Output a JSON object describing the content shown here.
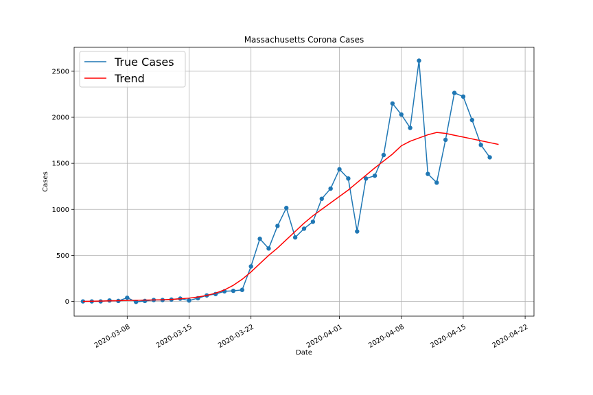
{
  "chart_data": {
    "type": "line",
    "title": "Massachusetts Corona Cases",
    "xlabel": "Date",
    "ylabel": "Cases",
    "x_axis": "date",
    "xlim": [
      "2020-03-02",
      "2020-04-23"
    ],
    "ylim": [
      -160,
      2760
    ],
    "xticks": [
      "2020-03-08",
      "2020-03-15",
      "2020-03-22",
      "2020-04-01",
      "2020-04-08",
      "2020-04-15",
      "2020-04-22"
    ],
    "yticks": [
      0,
      500,
      1000,
      1500,
      2000,
      2500
    ],
    "grid": true,
    "legend": "top-left",
    "x": [
      "2020-03-03",
      "2020-03-04",
      "2020-03-05",
      "2020-03-06",
      "2020-03-07",
      "2020-03-08",
      "2020-03-09",
      "2020-03-10",
      "2020-03-11",
      "2020-03-12",
      "2020-03-13",
      "2020-03-14",
      "2020-03-15",
      "2020-03-16",
      "2020-03-17",
      "2020-03-18",
      "2020-03-19",
      "2020-03-20",
      "2020-03-21",
      "2020-03-22",
      "2020-03-23",
      "2020-03-24",
      "2020-03-25",
      "2020-03-26",
      "2020-03-27",
      "2020-03-28",
      "2020-03-29",
      "2020-03-30",
      "2020-03-31",
      "2020-04-01",
      "2020-04-02",
      "2020-04-03",
      "2020-04-04",
      "2020-04-05",
      "2020-04-06",
      "2020-04-07",
      "2020-04-08",
      "2020-04-09",
      "2020-04-10",
      "2020-04-11",
      "2020-04-12",
      "2020-04-13",
      "2020-04-14",
      "2020-04-15",
      "2020-04-16",
      "2020-04-17",
      "2020-04-18",
      "2020-04-19",
      "2020-04-20"
    ],
    "series": [
      {
        "name": "True Cases",
        "color": "#1f77b4",
        "markers": true,
        "values": [
          0,
          0,
          0,
          10,
          5,
          40,
          -5,
          5,
          15,
          15,
          20,
          30,
          10,
          35,
          65,
          80,
          110,
          115,
          125,
          380,
          680,
          575,
          820,
          1015,
          695,
          790,
          865,
          1115,
          1225,
          1435,
          1335,
          760,
          1335,
          1365,
          1590,
          2150,
          2030,
          1885,
          2615,
          1385,
          1290,
          1755,
          2265,
          2225,
          1970,
          1700,
          1565,
          null,
          null
        ]
      },
      {
        "name": "Trend",
        "color": "#ff0000",
        "markers": false,
        "values": [
          0,
          2,
          4,
          6,
          8,
          10,
          12,
          14,
          16,
          18,
          22,
          28,
          36,
          48,
          65,
          90,
          125,
          175,
          240,
          320,
          410,
          500,
          580,
          670,
          760,
          850,
          930,
          1000,
          1070,
          1140,
          1210,
          1290,
          1370,
          1450,
          1525,
          1600,
          1690,
          1740,
          1775,
          1810,
          1835,
          1825,
          1805,
          1785,
          1765,
          1745,
          1725,
          1705,
          null
        ]
      }
    ]
  }
}
